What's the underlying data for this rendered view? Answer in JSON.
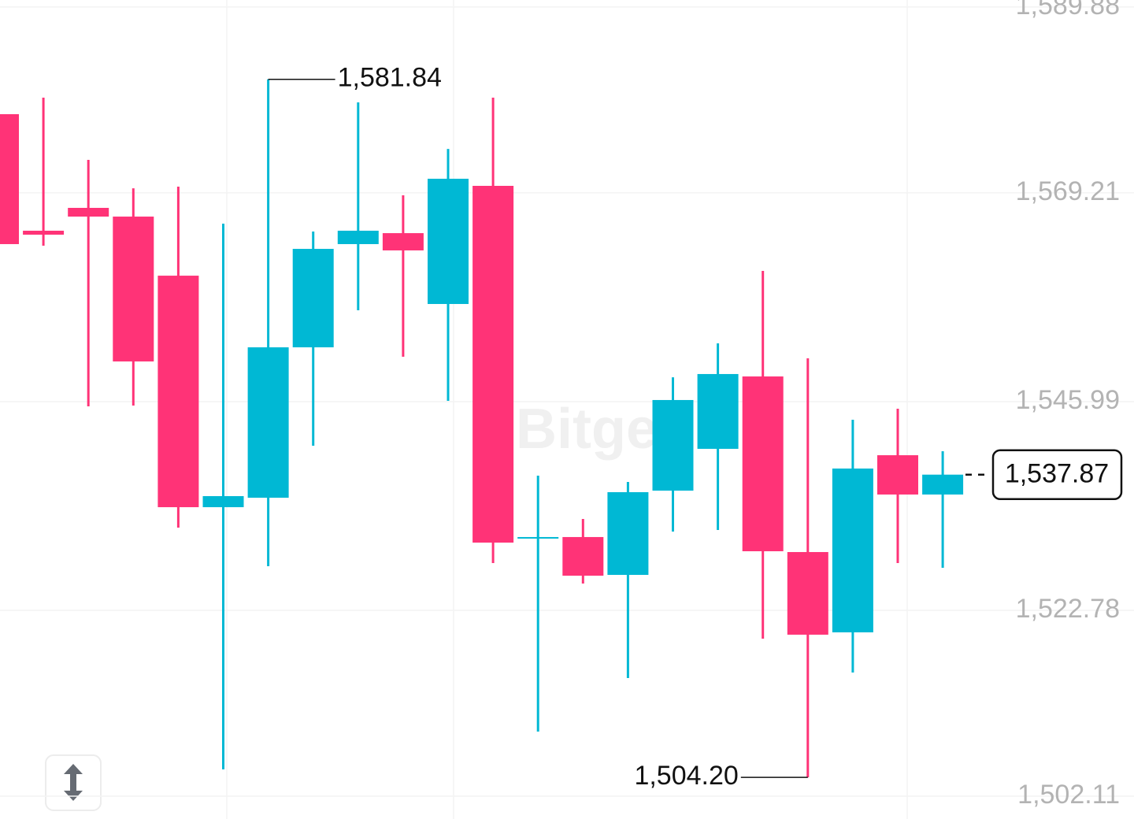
{
  "chart_data": {
    "type": "candlestick",
    "watermark": "Bitget",
    "up_color": "#00b8d4",
    "down_color": "#ff3377",
    "grid": true,
    "categories": [
      null,
      null,
      null,
      null,
      null,
      null,
      null,
      null,
      null,
      null,
      null,
      null,
      null,
      null,
      null,
      null,
      null,
      null,
      null,
      null,
      null,
      null
    ],
    "open": [
      1577.96,
      1565.0,
      1567.54,
      1566.57,
      1560.0,
      1534.25,
      1535.3,
      1552.03,
      1563.51,
      1564.73,
      1556.85,
      1569.99,
      1530.88,
      1530.93,
      1526.72,
      1536.09,
      1540.74,
      1548.79,
      1529.26,
      1520.33,
      1540.03,
      1535.66
    ],
    "high": [
      1577.96,
      1579.8,
      1572.88,
      1569.72,
      1569.9,
      1565.78,
      1581.84,
      1564.91,
      1579.27,
      1568.94,
      1574.1,
      1579.8,
      1537.76,
      1532.94,
      1537.06,
      1548.7,
      1552.47,
      1560.53,
      1550.81,
      1543.98,
      1545.2,
      1540.47
    ],
    "low": [
      1563.51,
      1563.33,
      1545.46,
      1545.55,
      1531.98,
      1505.09,
      1527.69,
      1541.09,
      1556.15,
      1550.98,
      1546.08,
      1528.04,
      1509.29,
      1525.76,
      1515.25,
      1531.54,
      1531.71,
      1519.63,
      1504.2,
      1515.86,
      1528.04,
      1527.51
    ],
    "close": [
      1563.51,
      1564.56,
      1566.57,
      1550.46,
      1534.25,
      1535.48,
      1552.03,
      1562.98,
      1565.0,
      1562.81,
      1570.78,
      1530.31,
      1530.93,
      1526.63,
      1535.92,
      1546.17,
      1549.06,
      1529.35,
      1520.07,
      1538.55,
      1535.66,
      1537.87
    ],
    "ylim": [
      1499.57,
      1590.66
    ],
    "yticks": [
      {
        "value": 1589.88,
        "label": "1,589.88"
      },
      {
        "value": 1569.21,
        "label": "1,569.21"
      },
      {
        "value": 1545.99,
        "label": "1,545.99"
      },
      {
        "value": 1522.78,
        "label": "1,522.78"
      },
      {
        "value": 1502.11,
        "label": "1,502.11"
      }
    ],
    "annotations": [
      {
        "value": 1581.84,
        "label": "1,581.84"
      },
      {
        "value": 1504.2,
        "label": "1,504.20"
      }
    ],
    "last_price": {
      "value": 1537.87,
      "label": "1,537.87"
    }
  }
}
